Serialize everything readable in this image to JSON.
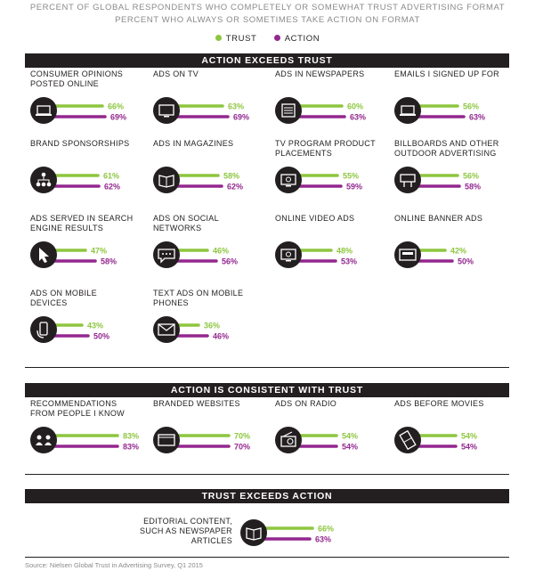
{
  "header": {
    "line1": "PERCENT OF GLOBAL RESPONDENTS WHO COMPLETELY OR SOMEWHAT TRUST ADVERTISING FORMAT",
    "line2": "PERCENT WHO ALWAYS OR SOMETIMES TAKE ACTION ON FORMAT"
  },
  "legend": {
    "trust": "TRUST",
    "action": "ACTION"
  },
  "colors": {
    "trust": "#8dc63f",
    "action": "#93278f",
    "dark": "#231f20"
  },
  "sections": [
    {
      "title": "ACTION EXCEEDS TRUST"
    },
    {
      "title": "ACTION IS CONSISTENT WITH TRUST"
    },
    {
      "title": "TRUST EXCEEDS ACTION"
    }
  ],
  "source": "Source: Nielsen Global Trust in Advertising Survey, Q1 2015",
  "chart_data": {
    "type": "bar",
    "series": [
      {
        "name": "TRUST",
        "color": "#8dc63f"
      },
      {
        "name": "ACTION",
        "color": "#93278f"
      }
    ],
    "ylim": [
      0,
      100
    ],
    "unit": "%",
    "items": [
      {
        "section": 0,
        "label": [
          "CONSUMER OPINIONS",
          "POSTED ONLINE"
        ],
        "trust": 66,
        "action": 69,
        "icon": "laptop-chat-icon"
      },
      {
        "section": 0,
        "label": [
          "ADS ON TV"
        ],
        "trust": 63,
        "action": 69,
        "icon": "tv-icon"
      },
      {
        "section": 0,
        "label": [
          "ADS IN NEWSPAPERS"
        ],
        "trust": 60,
        "action": 63,
        "icon": "newspaper-icon"
      },
      {
        "section": 0,
        "label": [
          "EMAILS I SIGNED UP FOR"
        ],
        "trust": 56,
        "action": 63,
        "icon": "laptop-icon"
      },
      {
        "section": 0,
        "label": [
          "BRAND SPONSORSHIPS"
        ],
        "trust": 61,
        "action": 62,
        "icon": "org-chart-icon"
      },
      {
        "section": 0,
        "label": [
          "ADS IN MAGAZINES"
        ],
        "trust": 58,
        "action": 62,
        "icon": "magazine-icon"
      },
      {
        "section": 0,
        "label": [
          "TV PROGRAM PRODUCT",
          "PLACEMENTS"
        ],
        "trust": 55,
        "action": 59,
        "icon": "tv-product-icon"
      },
      {
        "section": 0,
        "label": [
          "BILLBOARDS AND OTHER",
          "OUTDOOR ADVERTISING"
        ],
        "trust": 56,
        "action": 58,
        "icon": "billboard-icon"
      },
      {
        "section": 0,
        "label": [
          "ADS SERVED IN SEARCH",
          "ENGINE RESULTS"
        ],
        "trust": 47,
        "action": 58,
        "icon": "cursor-icon"
      },
      {
        "section": 0,
        "label": [
          "ADS ON SOCIAL",
          "NETWORKS"
        ],
        "trust": 46,
        "action": 56,
        "icon": "chat-bubble-icon"
      },
      {
        "section": 0,
        "label": [
          "ONLINE VIDEO ADS"
        ],
        "trust": 48,
        "action": 53,
        "icon": "video-monitor-icon"
      },
      {
        "section": 0,
        "label": [
          "ONLINE BANNER ADS"
        ],
        "trust": 42,
        "action": 50,
        "icon": "banner-icon"
      },
      {
        "section": 0,
        "label": [
          "ADS ON MOBILE",
          "DEVICES"
        ],
        "trust": 43,
        "action": 50,
        "icon": "mobile-hand-icon"
      },
      {
        "section": 0,
        "label": [
          "TEXT ADS ON MOBILE",
          "PHONES"
        ],
        "trust": 36,
        "action": 46,
        "icon": "envelope-icon"
      },
      {
        "section": 1,
        "label": [
          "RECOMMENDATIONS",
          "FROM PEOPLE I KNOW"
        ],
        "trust": 83,
        "action": 83,
        "icon": "people-icon"
      },
      {
        "section": 1,
        "label": [
          "BRANDED WEBSITES"
        ],
        "trust": 70,
        "action": 70,
        "icon": "website-icon"
      },
      {
        "section": 1,
        "label": [
          "ADS ON RADIO"
        ],
        "trust": 54,
        "action": 54,
        "icon": "radio-icon"
      },
      {
        "section": 1,
        "label": [
          "ADS BEFORE MOVIES"
        ],
        "trust": 54,
        "action": 54,
        "icon": "film-icon"
      },
      {
        "section": 2,
        "label": [
          "EDITORIAL CONTENT,",
          "SUCH AS NEWSPAPER",
          "ARTICLES"
        ],
        "trust": 66,
        "action": 63,
        "icon": "book-icon"
      }
    ]
  }
}
